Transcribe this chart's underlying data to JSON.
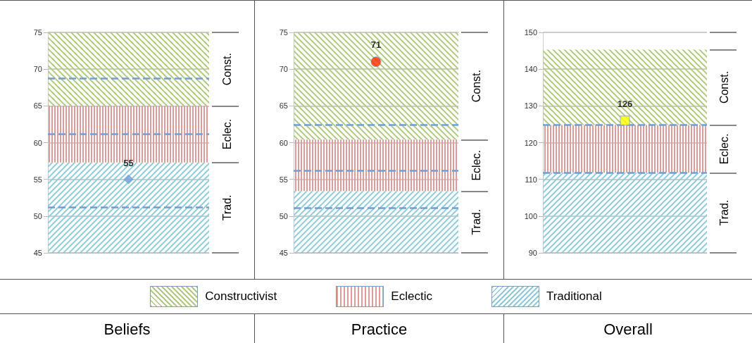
{
  "chart_data": [
    {
      "type": "scatter",
      "title": "Beliefs",
      "categories": [
        null
      ],
      "grid": "y",
      "ylim": [
        45,
        75
      ],
      "yticks": [
        45,
        50,
        55,
        60,
        65,
        70,
        75
      ],
      "marker": "diamond",
      "data_labels": true,
      "series": [
        {
          "color": "#6fa0dc",
          "values": [
            55
          ]
        }
      ],
      "bands": [
        {
          "axis": "y",
          "from": 45,
          "to": 57.3,
          "label": "Trad.",
          "color": "#93cddd"
        },
        {
          "axis": "y",
          "from": 57.3,
          "to": 65,
          "label": "Eclec.",
          "color": "#e09a98"
        },
        {
          "axis": "y",
          "from": 65,
          "to": 75,
          "label": "Const.",
          "color": "#b3cc82"
        }
      ],
      "ref_lines": [
        {
          "axis": "y",
          "value": 51.2,
          "color": "#6f9fd8",
          "line_style": "dashed"
        },
        {
          "axis": "y",
          "value": 61.2,
          "color": "#6f9fd8",
          "line_style": "dashed"
        },
        {
          "axis": "y",
          "value": 68.7,
          "color": "#6f9fd8",
          "line_style": "dashed"
        }
      ]
    },
    {
      "type": "scatter",
      "title": "Practice",
      "categories": [
        null
      ],
      "grid": "y",
      "ylim": [
        45,
        75
      ],
      "yticks": [
        45,
        50,
        55,
        60,
        65,
        70,
        75
      ],
      "marker": "circle",
      "data_labels": true,
      "series": [
        {
          "color": "#ff2a00",
          "values": [
            71
          ]
        }
      ],
      "bands": [
        {
          "axis": "y",
          "from": 45,
          "to": 53.4,
          "label": "Trad.",
          "color": "#93cddd"
        },
        {
          "axis": "y",
          "from": 53.4,
          "to": 60.4,
          "label": "Eclec.",
          "color": "#e09a98"
        },
        {
          "axis": "y",
          "from": 60.4,
          "to": 75,
          "label": "Const.",
          "color": "#b3cc82"
        }
      ],
      "ref_lines": [
        {
          "axis": "y",
          "value": 51.1,
          "color": "#6f9fd8",
          "line_style": "dashed"
        },
        {
          "axis": "y",
          "value": 56.2,
          "color": "#6f9fd8",
          "line_style": "dashed"
        },
        {
          "axis": "y",
          "value": 62.4,
          "color": "#6f9fd8",
          "line_style": "dashed"
        }
      ]
    },
    {
      "type": "scatter",
      "title": "Overall",
      "categories": [
        null
      ],
      "grid": "y",
      "ylim": [
        90,
        150
      ],
      "yticks": [
        90,
        100,
        110,
        120,
        130,
        140,
        150
      ],
      "marker": "square",
      "data_labels": true,
      "series": [
        {
          "color": "#ffff00",
          "values": [
            126
          ]
        }
      ],
      "bands": [
        {
          "axis": "y",
          "from": 90,
          "to": 111.8,
          "label": "Trad.",
          "color": "#93cddd"
        },
        {
          "axis": "y",
          "from": 111.8,
          "to": 124.8,
          "label": "Eclec.",
          "color": "#e09a98"
        },
        {
          "axis": "y",
          "from": 124.8,
          "to": 145.3,
          "label": "Const.",
          "color": "#b3cc82"
        }
      ],
      "ref_lines": [
        {
          "axis": "y",
          "value": 111.8,
          "color": "#6f9fd8",
          "line_style": "dashed"
        },
        {
          "axis": "y",
          "value": 124.8,
          "color": "#6f9fd8",
          "line_style": "dashed"
        }
      ]
    },
    {
      "type": "other",
      "annotations": [
        "Constructivist",
        "Eclectic",
        "Traditional"
      ]
    }
  ]
}
